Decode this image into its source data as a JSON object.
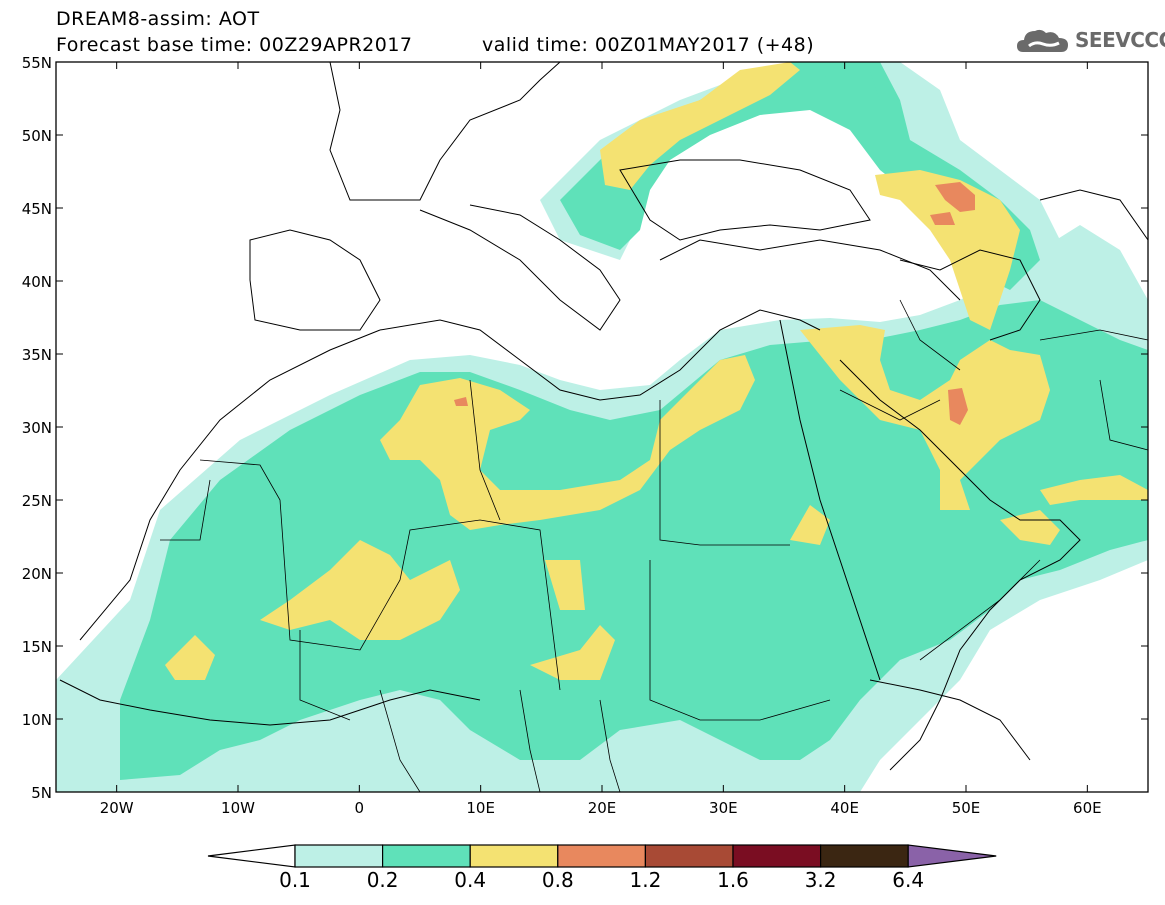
{
  "header": {
    "title": "DREAM8-assim: AOT",
    "base_time": "Forecast base time: 00Z29APR2017",
    "valid_time": "valid time: 00Z01MAY2017 (+48)"
  },
  "logo": {
    "text": "SEEVCCC",
    "icon": "cloud-logo-icon"
  },
  "map": {
    "lat_labels": [
      "55N",
      "50N",
      "45N",
      "40N",
      "35N",
      "30N",
      "25N",
      "20N",
      "15N",
      "10N",
      "5N"
    ],
    "lon_labels": [
      "20W",
      "10W",
      "0",
      "10E",
      "20E",
      "30E",
      "40E",
      "50E",
      "60E"
    ],
    "lat_values": [
      55,
      50,
      45,
      40,
      35,
      30,
      25,
      20,
      15,
      10,
      5
    ],
    "lon_values": [
      -20,
      -10,
      0,
      10,
      20,
      30,
      40,
      50,
      60
    ],
    "lon_range": [
      -25,
      65
    ],
    "lat_range": [
      5,
      55
    ]
  },
  "colorbar": {
    "labels": [
      "0.1",
      "0.2",
      "0.4",
      "0.8",
      "1.2",
      "1.6",
      "3.2",
      "6.4"
    ],
    "colors": [
      "#ffffff",
      "#bdf0e6",
      "#5fe1b9",
      "#f4e272",
      "#e8885e",
      "#a84a35",
      "#7a0d22",
      "#3b2612",
      "#8a62a8"
    ]
  },
  "colors": {
    "level1": "#bdf0e6",
    "level2": "#5fe1b9",
    "level3": "#f4e272",
    "level4": "#e8885e"
  }
}
